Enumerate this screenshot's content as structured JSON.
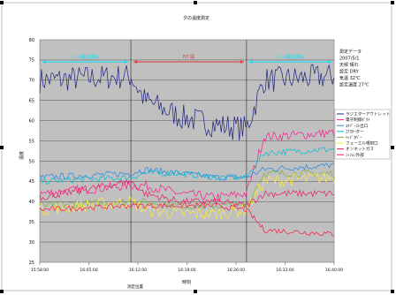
{
  "chart_data": {
    "type": "line",
    "title": "夕の温度測定",
    "xlabel": "時刻",
    "ylabel": "温度",
    "ylim": [
      25,
      80
    ],
    "yticks": [
      "80",
      "75",
      "70",
      "65",
      "60",
      "55",
      "50",
      "45",
      "40",
      "35",
      "30",
      "25"
    ],
    "xticks": [
      "15:58:00",
      "16:05:00",
      "16:12:00",
      "16:19:00",
      "16:26:00",
      "16:33:00",
      "16:40:00"
    ],
    "x_range_minutes": [
      0,
      42
    ],
    "grid": "horizontal",
    "legend_position": "right",
    "bands": [
      {
        "label": "ｼｬｰﾄ開放運転",
        "color": "#00e5ff",
        "from_min": 0,
        "to_min": 13
      },
      {
        "label": "HT 開",
        "color": "#e53935",
        "from_min": 13,
        "to_min": 29.5
      },
      {
        "label": "ｼｬｰﾄ開放運転",
        "color": "#00e5ff",
        "from_min": 29.5,
        "to_min": 42
      }
    ],
    "info_block": [
      "測定データ",
      "2007/5/1",
      "天候 晴れ",
      "設定 DRY",
      "気温 32℃",
      "設定温度 27℃"
    ],
    "series": [
      {
        "name": "ラジエターアウトレット",
        "color": "#1a237e"
      },
      {
        "name": "電子制御ﾀﾞｸﾄ",
        "color": "#ff1a8c"
      },
      {
        "name": "ｴｷｿﾞｰｽﾄ出口",
        "color": "#1e88e5"
      },
      {
        "name": "ｴｱｽﾀｰター",
        "color": "#00bcd4"
      },
      {
        "name": "ﾍｯﾄﾞｶﾊﾞｰ",
        "color": "#7cb342"
      },
      {
        "name": "フューエル噴射口",
        "color": "#ffeb3b"
      },
      {
        "name": "オンネットガス",
        "color": "#e91e63"
      },
      {
        "name": "ﾐｯｼｮﾝ外部",
        "color": "#ff1744"
      }
    ],
    "trend_points": {
      "minutes": [
        0,
        13,
        15,
        20,
        25,
        29.5,
        32,
        42
      ],
      "ラジエターアウトレット": [
        70,
        71,
        65,
        61,
        59,
        58,
        70,
        71
      ],
      "電子制御ﾀﾞｸﾄ": [
        42,
        44,
        44,
        42,
        41,
        42,
        56,
        57
      ],
      "ｴｷｿﾞｰｽﾄ出口": [
        46,
        47,
        48,
        47,
        46,
        46,
        48,
        49
      ],
      "ｴｱｽﾀｰター": [
        45,
        46,
        47,
        47,
        46,
        46,
        52,
        53
      ],
      "ﾍｯﾄﾞｶﾊﾞｰ": [
        39,
        40,
        40,
        39,
        39,
        39,
        47,
        47
      ],
      "フューエル噴射口": [
        38,
        40,
        38,
        37,
        37,
        38,
        45,
        46
      ],
      "オンネットガス": [
        41,
        45,
        42,
        40,
        40,
        39,
        42,
        42
      ],
      "ﾐｯｼｮﾝ外部": [
        38,
        39,
        39,
        39,
        39,
        38,
        33,
        32
      ]
    },
    "footnote": "測定位置"
  }
}
